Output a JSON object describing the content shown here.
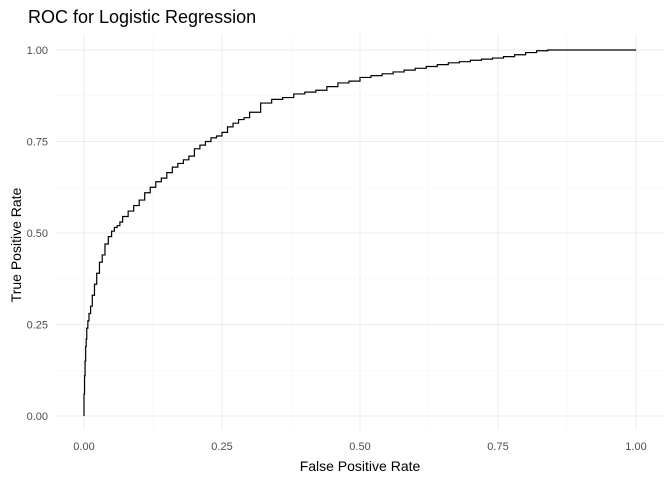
{
  "chart_data": {
    "type": "line",
    "title": "ROC for Logistic Regression",
    "xlabel": "False Positive Rate",
    "ylabel": "True Positive Rate",
    "xlim": [
      0,
      1
    ],
    "ylim": [
      0,
      1
    ],
    "grid": true,
    "x_ticks": [
      "0.00",
      "0.25",
      "0.50",
      "0.75",
      "1.00"
    ],
    "y_ticks": [
      "0.00",
      "0.25",
      "0.50",
      "0.75",
      "1.00"
    ],
    "line_color": "#000000",
    "series": [
      {
        "x": [
          0.0,
          0.001,
          0.002,
          0.003,
          0.004,
          0.005,
          0.007,
          0.009,
          0.012,
          0.015,
          0.019,
          0.023,
          0.028,
          0.033,
          0.038,
          0.044,
          0.05,
          0.055,
          0.06,
          0.065,
          0.07,
          0.08,
          0.09,
          0.1,
          0.11,
          0.12,
          0.13,
          0.14,
          0.15,
          0.16,
          0.17,
          0.18,
          0.19,
          0.2,
          0.21,
          0.22,
          0.23,
          0.24,
          0.25,
          0.26,
          0.27,
          0.28,
          0.29,
          0.3,
          0.32,
          0.34,
          0.36,
          0.38,
          0.4,
          0.42,
          0.44,
          0.46,
          0.48,
          0.5,
          0.52,
          0.54,
          0.56,
          0.58,
          0.6,
          0.62,
          0.64,
          0.66,
          0.68,
          0.7,
          0.72,
          0.74,
          0.76,
          0.78,
          0.8,
          0.82,
          0.84,
          0.86,
          0.88,
          0.9,
          0.92,
          0.94,
          0.96,
          0.98,
          1.0
        ],
        "y": [
          0.0,
          0.06,
          0.11,
          0.15,
          0.19,
          0.21,
          0.24,
          0.26,
          0.28,
          0.3,
          0.33,
          0.36,
          0.39,
          0.42,
          0.44,
          0.47,
          0.49,
          0.505,
          0.515,
          0.52,
          0.53,
          0.545,
          0.56,
          0.575,
          0.59,
          0.61,
          0.625,
          0.64,
          0.65,
          0.665,
          0.68,
          0.69,
          0.7,
          0.71,
          0.73,
          0.74,
          0.75,
          0.76,
          0.765,
          0.775,
          0.79,
          0.8,
          0.81,
          0.815,
          0.83,
          0.855,
          0.865,
          0.87,
          0.88,
          0.885,
          0.89,
          0.9,
          0.91,
          0.915,
          0.925,
          0.93,
          0.935,
          0.94,
          0.945,
          0.95,
          0.955,
          0.96,
          0.965,
          0.968,
          0.972,
          0.975,
          0.978,
          0.982,
          0.987,
          0.993,
          0.998,
          1.0,
          1.0,
          1.0,
          1.0,
          1.0,
          1.0,
          1.0,
          1.0
        ]
      }
    ]
  }
}
